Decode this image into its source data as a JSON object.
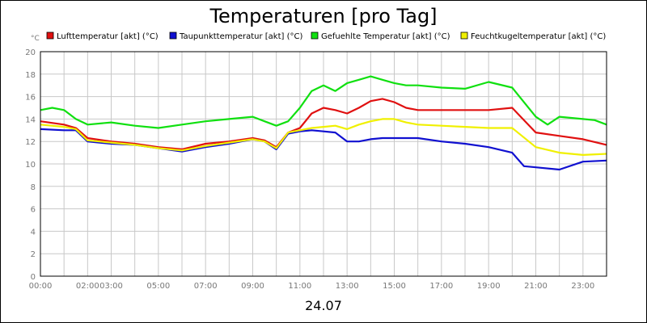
{
  "chart_data": {
    "type": "line",
    "title": "Temperaturen [pro Tag]",
    "ylabel": "°C",
    "xlabel": "24.07",
    "ylim": [
      0,
      20
    ],
    "xlim": [
      0,
      24
    ],
    "grid": true,
    "legend_position": "top",
    "y_ticks": [
      "0",
      "2",
      "4",
      "6",
      "8",
      "10",
      "12",
      "14",
      "16",
      "18",
      "20"
    ],
    "x_ticks": [
      {
        "t": 0,
        "label": "00:00"
      },
      {
        "t": 2,
        "label": "02:00"
      },
      {
        "t": 3,
        "label": "03:00"
      },
      {
        "t": 5,
        "label": "05:00"
      },
      {
        "t": 7,
        "label": "07:00"
      },
      {
        "t": 9,
        "label": "09:00"
      },
      {
        "t": 11,
        "label": "11:00"
      },
      {
        "t": 13,
        "label": "13:00"
      },
      {
        "t": 15,
        "label": "15:00"
      },
      {
        "t": 17,
        "label": "17:00"
      },
      {
        "t": 19,
        "label": "19:00"
      },
      {
        "t": 21,
        "label": "21:00"
      },
      {
        "t": 23,
        "label": "23:00"
      }
    ],
    "series": [
      {
        "name": "Lufttemperatur [akt] (°C)",
        "color": "#e01010",
        "x": [
          0,
          1,
          1.5,
          2,
          3,
          4,
          5,
          6,
          7,
          8,
          9,
          9.5,
          10,
          10.5,
          11,
          11.5,
          12,
          12.5,
          13,
          13.5,
          14,
          14.5,
          15,
          15.5,
          16,
          17,
          18,
          19,
          20,
          21,
          22,
          23,
          24
        ],
        "y": [
          13.8,
          13.5,
          13.2,
          12.3,
          12.0,
          11.8,
          11.5,
          11.3,
          11.8,
          12.0,
          12.3,
          12.1,
          11.5,
          12.8,
          13.2,
          14.5,
          15.0,
          14.8,
          14.5,
          15.0,
          15.6,
          15.8,
          15.5,
          15.0,
          14.8,
          14.8,
          14.8,
          14.8,
          15.0,
          12.8,
          12.5,
          12.2,
          11.7
        ]
      },
      {
        "name": "Taupunkttemperatur [akt] (°C)",
        "color": "#1010d0",
        "x": [
          0,
          1,
          1.5,
          2,
          3,
          4,
          5,
          6,
          7,
          8,
          9,
          9.5,
          10,
          10.5,
          11,
          11.5,
          12,
          12.5,
          13,
          13.5,
          14,
          14.5,
          15,
          15.5,
          16,
          17,
          18,
          19,
          20,
          20.5,
          21,
          22,
          23,
          24
        ],
        "y": [
          13.1,
          13.0,
          13.0,
          12.0,
          11.8,
          11.7,
          11.4,
          11.1,
          11.5,
          11.8,
          12.2,
          12.0,
          11.3,
          12.7,
          12.9,
          13.0,
          12.9,
          12.8,
          12.0,
          12.0,
          12.2,
          12.3,
          12.3,
          12.3,
          12.3,
          12.0,
          11.8,
          11.5,
          11.0,
          9.8,
          9.7,
          9.5,
          10.2,
          10.3
        ]
      },
      {
        "name": "Gefuehlte Temperatur [akt] (°C)",
        "color": "#10e010",
        "x": [
          0,
          0.5,
          1,
          1.5,
          2,
          3,
          4,
          5,
          6,
          7,
          8,
          9,
          9.5,
          10,
          10.5,
          11,
          11.5,
          12,
          12.5,
          13,
          13.5,
          14,
          14.5,
          15,
          15.5,
          16,
          17,
          18,
          19,
          20,
          21,
          21.5,
          22,
          23,
          23.5,
          24
        ],
        "y": [
          14.8,
          15.0,
          14.8,
          14.0,
          13.5,
          13.7,
          13.4,
          13.2,
          13.5,
          13.8,
          14.0,
          14.2,
          13.8,
          13.4,
          13.8,
          15.0,
          16.5,
          17.0,
          16.5,
          17.2,
          17.5,
          17.8,
          17.5,
          17.2,
          17.0,
          17.0,
          16.8,
          16.7,
          17.3,
          16.8,
          14.2,
          13.5,
          14.2,
          14.0,
          13.9,
          13.5
        ]
      },
      {
        "name": "Feuchtkugeltemperatur [akt] (°C)",
        "color": "#f0f000",
        "x": [
          0,
          1,
          1.5,
          2,
          3,
          4,
          5,
          6,
          7,
          8,
          9,
          9.5,
          10,
          10.5,
          11,
          11.5,
          12,
          12.5,
          13,
          13.5,
          14,
          14.5,
          15,
          15.5,
          16,
          17,
          18,
          19,
          20,
          21,
          22,
          23,
          24
        ],
        "y": [
          13.5,
          13.3,
          13.1,
          12.1,
          11.9,
          11.7,
          11.4,
          11.2,
          11.6,
          11.9,
          12.2,
          12.0,
          11.4,
          12.8,
          13.0,
          13.2,
          13.3,
          13.4,
          13.1,
          13.5,
          13.8,
          14.0,
          14.0,
          13.7,
          13.5,
          13.4,
          13.3,
          13.2,
          13.2,
          11.5,
          11.0,
          10.8,
          10.9
        ]
      }
    ]
  }
}
